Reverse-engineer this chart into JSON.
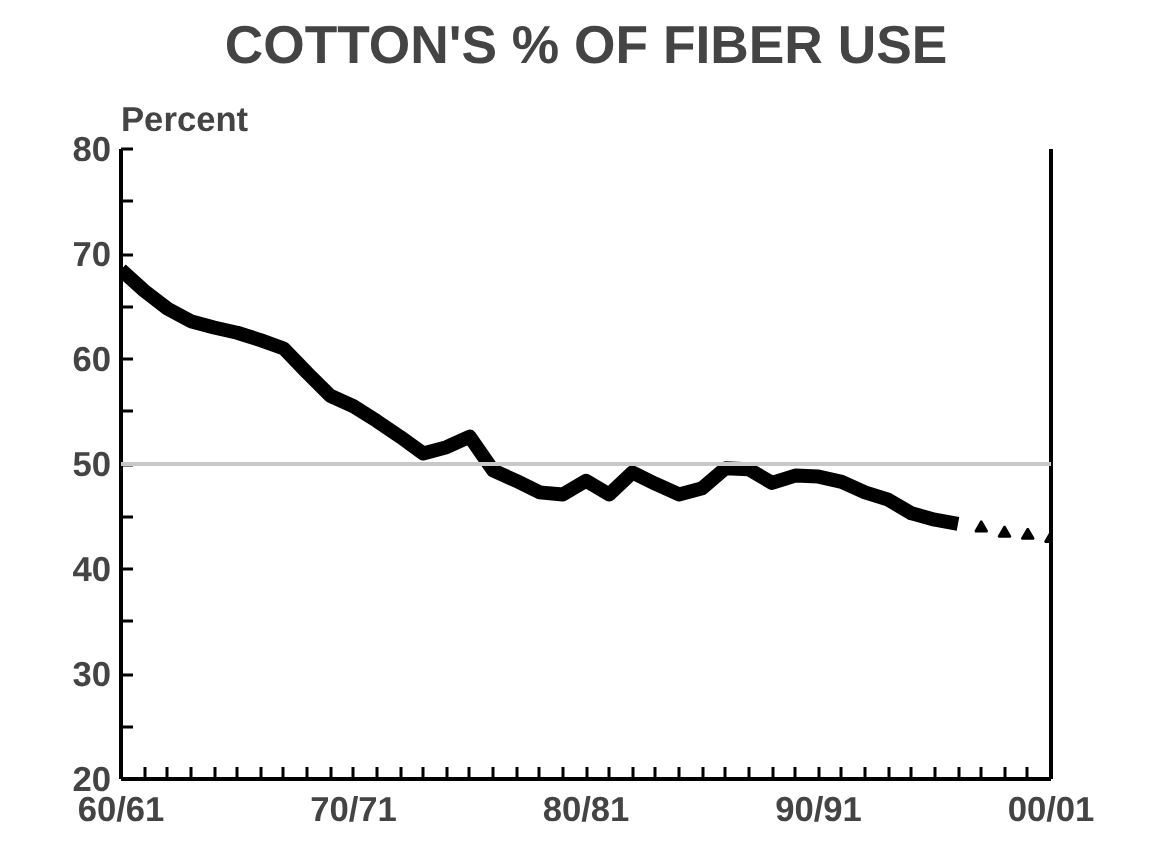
{
  "chart_data": {
    "type": "line",
    "title": "COTTON'S % OF FIBER USE",
    "ylabel": "Percent",
    "categories": [
      "60/61",
      null,
      null,
      null,
      null,
      null,
      null,
      null,
      null,
      null,
      "70/71",
      null,
      null,
      null,
      null,
      null,
      null,
      null,
      null,
      null,
      "80/81",
      null,
      null,
      null,
      null,
      null,
      null,
      null,
      null,
      null,
      "90/91",
      null,
      null,
      null,
      null,
      null,
      null,
      null,
      null,
      null,
      "00/01"
    ],
    "series": [
      {
        "color": "#000000",
        "line_style": "solid",
        "marker": "none",
        "values": [
          68.5,
          66.5,
          64.8,
          63.6,
          63,
          62.5,
          61.8,
          61,
          58.7,
          56.5,
          55.5,
          54.1,
          52.6,
          51,
          51.6,
          52.6,
          49.4,
          48.4,
          47.3,
          47.1,
          48.4,
          47.1,
          49.2,
          48.1,
          47.1,
          47.7,
          49.6,
          49.5,
          48.2,
          48.9,
          48.8,
          48.3,
          47.3,
          46.6,
          45.3,
          44.7,
          44.3,
          null,
          null,
          null,
          null
        ]
      },
      {
        "type": "scatter",
        "color": "#000000",
        "marker": "triangle",
        "values": [
          null,
          null,
          null,
          null,
          null,
          null,
          null,
          null,
          null,
          null,
          null,
          null,
          null,
          null,
          null,
          null,
          null,
          null,
          null,
          null,
          null,
          null,
          null,
          null,
          null,
          null,
          null,
          null,
          null,
          null,
          null,
          null,
          null,
          null,
          null,
          null,
          null,
          43.9,
          43.4,
          43.2,
          42.9
        ]
      }
    ],
    "ylim": [
      20,
      80
    ],
    "yticks": [
      20,
      {
        "value": 25,
        "label": null
      },
      30,
      {
        "value": 35,
        "label": null
      },
      40,
      {
        "value": 45,
        "label": null
      },
      50,
      {
        "value": 55,
        "label": null
      },
      60,
      {
        "value": 65,
        "label": null
      },
      70,
      {
        "value": 75,
        "label": null
      },
      80
    ],
    "ref_lines": [
      {
        "axis": "y",
        "value": 50,
        "label": null,
        "color": "#c8c8c8"
      }
    ],
    "grid": false,
    "legend": false
  }
}
